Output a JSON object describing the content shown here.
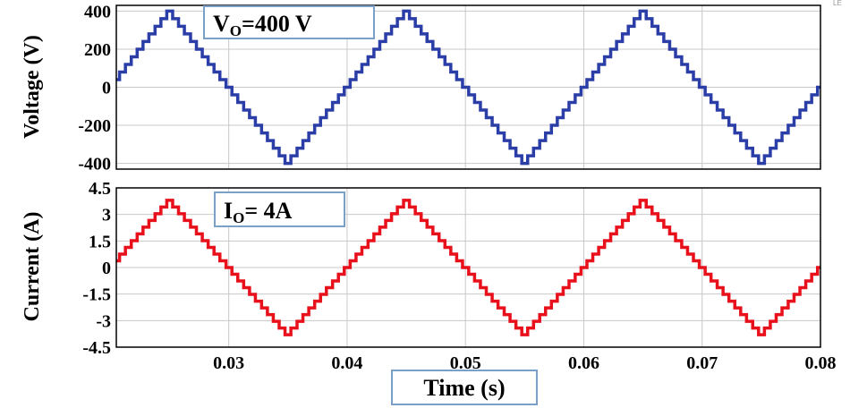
{
  "chart_data": [
    {
      "type": "line",
      "id": "voltage",
      "ylabel": "Voltage (V)",
      "xlim": [
        0.0205,
        0.08
      ],
      "ylim": [
        -430,
        430
      ],
      "yticks": [
        400,
        200,
        0,
        -200,
        -400
      ],
      "ytick_labels": [
        "400",
        "200",
        "0",
        "-200",
        "-400"
      ],
      "xticks": [
        0.03,
        0.04,
        0.05,
        0.06,
        0.07,
        0.08
      ],
      "grid": true,
      "series": [
        {
          "color": "#2b3ea8",
          "waveform": "stepped-triangle",
          "peak": 400,
          "level_step": 40,
          "period_s": 0.02,
          "zero_start_s": 0.02,
          "x": [
            0.0205,
            0.02,
            0.021,
            0.022,
            0.023,
            0.024,
            0.025,
            0.026,
            0.027,
            0.028,
            0.029,
            0.03,
            0.031,
            0.032,
            0.033,
            0.034,
            0.035,
            0.036,
            0.037,
            0.038,
            0.039,
            0.04,
            0.041,
            0.042,
            0.043,
            0.044,
            0.045,
            0.046,
            0.047,
            0.048,
            0.049,
            0.05,
            0.051,
            0.052,
            0.053,
            0.054,
            0.055,
            0.056,
            0.057,
            0.058,
            0.059,
            0.06,
            0.061,
            0.062,
            0.063,
            0.064,
            0.065,
            0.066,
            0.067,
            0.068,
            0.069,
            0.07,
            0.071,
            0.072,
            0.073,
            0.074,
            0.075,
            0.076,
            0.077,
            0.078,
            0.079,
            0.08
          ],
          "y": [
            0,
            0,
            40,
            120,
            200,
            280,
            400,
            400,
            280,
            200,
            120,
            0,
            0,
            -120,
            -200,
            -280,
            -400,
            -400,
            -280,
            -200,
            -120,
            0,
            0,
            120,
            200,
            280,
            400,
            400,
            280,
            200,
            120,
            0,
            0,
            -120,
            -200,
            -280,
            -400,
            -400,
            -280,
            -200,
            -120,
            0,
            0,
            120,
            200,
            280,
            400,
            400,
            280,
            200,
            120,
            0,
            0,
            -120,
            -200,
            -280,
            -400,
            -400,
            -280,
            -200,
            -120,
            0
          ]
        }
      ],
      "annotation": {
        "main": "V",
        "sub": "O",
        "rest": "=400 V"
      }
    },
    {
      "type": "line",
      "id": "current",
      "ylabel": "Current (A)",
      "xlabel": "Time (s)",
      "xlim": [
        0.0205,
        0.08
      ],
      "ylim": [
        -4.5,
        4.5
      ],
      "yticks": [
        4.5,
        3,
        1.5,
        0,
        -1.5,
        -3,
        -4.5
      ],
      "ytick_labels": [
        "4.5",
        "3",
        "1.5",
        "0",
        "-1.5",
        "-3",
        "-4.5"
      ],
      "xticks": [
        0.03,
        0.04,
        0.05,
        0.06,
        0.07,
        0.08
      ],
      "xtick_labels": [
        "0.03",
        "0.04",
        "0.05",
        "0.06",
        "0.07",
        "0.08"
      ],
      "grid": true,
      "series": [
        {
          "color": "#e8101b",
          "waveform": "stepped-triangle",
          "peak": 3.8,
          "level_step": 0.38,
          "period_s": 0.02,
          "zero_start_s": 0.02,
          "x": [
            0.0205,
            0.025,
            0.03,
            0.035,
            0.04,
            0.045,
            0.05,
            0.055,
            0.06,
            0.065,
            0.07,
            0.075,
            0.08
          ],
          "y": [
            0,
            3.8,
            0,
            -3.8,
            0,
            3.8,
            0,
            -3.8,
            0,
            3.8,
            0,
            -3.8,
            0
          ]
        }
      ],
      "annotation": {
        "main": "I",
        "sub": "O",
        "rest": "= 4A"
      }
    }
  ],
  "corner_mark": "LE"
}
